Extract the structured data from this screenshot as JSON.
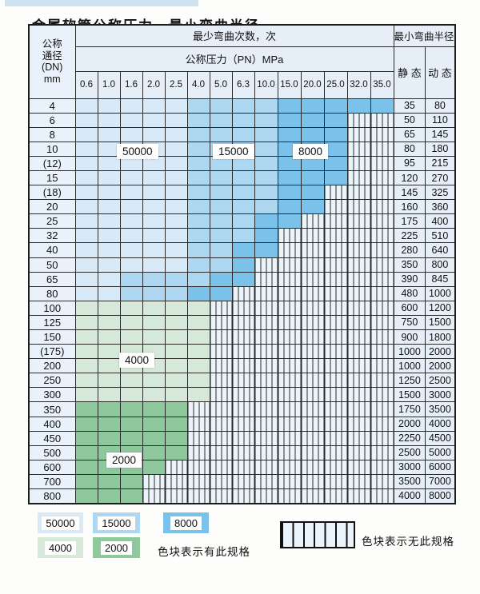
{
  "title": "金属软管公称压力、最小弯曲半径",
  "table": {
    "header": {
      "dn_label_lines": [
        "公称",
        "通径",
        "(DN)",
        "mm"
      ],
      "bend_cycles_label": "最少弯曲次数，次",
      "pressure_label": "公称压力（PN）MPa",
      "pressure_columns": [
        "0.6",
        "1.0",
        "1.6",
        "2.0",
        "2.5",
        "4.0",
        "5.0",
        "6.3",
        "10.0",
        "15.0",
        "20.0",
        "25.0",
        "32.0",
        "35.0"
      ],
      "radius_label": "最小弯曲半径",
      "static_label": "静 态",
      "dynamic_label": "动 态"
    },
    "rows": [
      {
        "dn": "4",
        "cells": [
          "L",
          "L",
          "L",
          "L",
          "L",
          "M",
          "M",
          "M",
          "M",
          "D",
          "D",
          "D",
          "D",
          "D"
        ],
        "static": "35",
        "dynamic": "80"
      },
      {
        "dn": "6",
        "cells": [
          "L",
          "L",
          "L",
          "L",
          "L",
          "M",
          "M",
          "M",
          "M",
          "D",
          "D",
          "D",
          "X",
          "X"
        ],
        "static": "50",
        "dynamic": "110"
      },
      {
        "dn": "8",
        "cells": [
          "L",
          "L",
          "L",
          "L",
          "L",
          "M",
          "M",
          "M",
          "M",
          "D",
          "D",
          "D",
          "X",
          "X"
        ],
        "static": "65",
        "dynamic": "145"
      },
      {
        "dn": "10",
        "cells": [
          "L",
          "L",
          "L",
          "L",
          "L",
          "M",
          "M",
          "M",
          "M",
          "D",
          "D",
          "D",
          "X",
          "X"
        ],
        "static": "80",
        "dynamic": "180"
      },
      {
        "dn": "(12)",
        "cells": [
          "L",
          "L",
          "L",
          "L",
          "L",
          "M",
          "M",
          "M",
          "M",
          "D",
          "D",
          "D",
          "X",
          "X"
        ],
        "static": "95",
        "dynamic": "215"
      },
      {
        "dn": "15",
        "cells": [
          "L",
          "L",
          "L",
          "L",
          "L",
          "M",
          "M",
          "M",
          "M",
          "D",
          "D",
          "D",
          "X",
          "X"
        ],
        "static": "120",
        "dynamic": "270"
      },
      {
        "dn": "(18)",
        "cells": [
          "L",
          "L",
          "L",
          "L",
          "L",
          "M",
          "M",
          "M",
          "M",
          "D",
          "D",
          "X",
          "X",
          "X"
        ],
        "static": "145",
        "dynamic": "325"
      },
      {
        "dn": "20",
        "cells": [
          "L",
          "L",
          "L",
          "L",
          "L",
          "M",
          "M",
          "M",
          "M",
          "D",
          "D",
          "X",
          "X",
          "X"
        ],
        "static": "160",
        "dynamic": "360"
      },
      {
        "dn": "25",
        "cells": [
          "L",
          "L",
          "L",
          "L",
          "L",
          "M",
          "M",
          "M",
          "D",
          "D",
          "X",
          "X",
          "X",
          "X"
        ],
        "static": "175",
        "dynamic": "400"
      },
      {
        "dn": "32",
        "cells": [
          "L",
          "L",
          "L",
          "L",
          "L",
          "M",
          "M",
          "M",
          "D",
          "X",
          "X",
          "X",
          "X",
          "X"
        ],
        "static": "225",
        "dynamic": "510"
      },
      {
        "dn": "40",
        "cells": [
          "L",
          "L",
          "L",
          "L",
          "L",
          "M",
          "M",
          "D",
          "D",
          "X",
          "X",
          "X",
          "X",
          "X"
        ],
        "static": "280",
        "dynamic": "640"
      },
      {
        "dn": "50",
        "cells": [
          "L",
          "L",
          "L",
          "L",
          "L",
          "M",
          "M",
          "D",
          "X",
          "X",
          "X",
          "X",
          "X",
          "X"
        ],
        "static": "350",
        "dynamic": "800"
      },
      {
        "dn": "65",
        "cells": [
          "L",
          "L",
          "M",
          "M",
          "M",
          "M",
          "D",
          "D",
          "X",
          "X",
          "X",
          "X",
          "X",
          "X"
        ],
        "static": "390",
        "dynamic": "845"
      },
      {
        "dn": "80",
        "cells": [
          "L",
          "L",
          "M",
          "M",
          "M",
          "D",
          "D",
          "X",
          "X",
          "X",
          "X",
          "X",
          "X",
          "X"
        ],
        "static": "480",
        "dynamic": "1000"
      },
      {
        "dn": "100",
        "cells": [
          "G",
          "G",
          "G",
          "G",
          "G",
          "G",
          "X",
          "X",
          "X",
          "X",
          "X",
          "X",
          "X",
          "X"
        ],
        "static": "600",
        "dynamic": "1200"
      },
      {
        "dn": "125",
        "cells": [
          "G",
          "G",
          "G",
          "G",
          "G",
          "G",
          "X",
          "X",
          "X",
          "X",
          "X",
          "X",
          "X",
          "X"
        ],
        "static": "750",
        "dynamic": "1500"
      },
      {
        "dn": "150",
        "cells": [
          "G",
          "G",
          "G",
          "G",
          "G",
          "G",
          "X",
          "X",
          "X",
          "X",
          "X",
          "X",
          "X",
          "X"
        ],
        "static": "900",
        "dynamic": "1800"
      },
      {
        "dn": "(175)",
        "cells": [
          "G",
          "G",
          "G",
          "G",
          "G",
          "G",
          "X",
          "X",
          "X",
          "X",
          "X",
          "X",
          "X",
          "X"
        ],
        "static": "1000",
        "dynamic": "2000"
      },
      {
        "dn": "200",
        "cells": [
          "G",
          "G",
          "G",
          "G",
          "G",
          "G",
          "X",
          "X",
          "X",
          "X",
          "X",
          "X",
          "X",
          "X"
        ],
        "static": "1000",
        "dynamic": "2000"
      },
      {
        "dn": "250",
        "cells": [
          "G",
          "G",
          "G",
          "G",
          "G",
          "G",
          "X",
          "X",
          "X",
          "X",
          "X",
          "X",
          "X",
          "X"
        ],
        "static": "1250",
        "dynamic": "2500"
      },
      {
        "dn": "300",
        "cells": [
          "G",
          "G",
          "G",
          "G",
          "G",
          "G",
          "X",
          "X",
          "X",
          "X",
          "X",
          "X",
          "X",
          "X"
        ],
        "static": "1500",
        "dynamic": "3000"
      },
      {
        "dn": "350",
        "cells": [
          "E",
          "E",
          "E",
          "E",
          "E",
          "X",
          "X",
          "X",
          "X",
          "X",
          "X",
          "X",
          "X",
          "X"
        ],
        "static": "1750",
        "dynamic": "3500"
      },
      {
        "dn": "400",
        "cells": [
          "E",
          "E",
          "E",
          "E",
          "E",
          "X",
          "X",
          "X",
          "X",
          "X",
          "X",
          "X",
          "X",
          "X"
        ],
        "static": "2000",
        "dynamic": "4000"
      },
      {
        "dn": "450",
        "cells": [
          "E",
          "E",
          "E",
          "E",
          "E",
          "X",
          "X",
          "X",
          "X",
          "X",
          "X",
          "X",
          "X",
          "X"
        ],
        "static": "2250",
        "dynamic": "4500"
      },
      {
        "dn": "500",
        "cells": [
          "E",
          "E",
          "E",
          "E",
          "E",
          "X",
          "X",
          "X",
          "X",
          "X",
          "X",
          "X",
          "X",
          "X"
        ],
        "static": "2500",
        "dynamic": "5000"
      },
      {
        "dn": "600",
        "cells": [
          "E",
          "E",
          "E",
          "E",
          "X",
          "X",
          "X",
          "X",
          "X",
          "X",
          "X",
          "X",
          "X",
          "X"
        ],
        "static": "3000",
        "dynamic": "6000"
      },
      {
        "dn": "700",
        "cells": [
          "E",
          "E",
          "E",
          "X",
          "X",
          "X",
          "X",
          "X",
          "X",
          "X",
          "X",
          "X",
          "X",
          "X"
        ],
        "static": "3500",
        "dynamic": "7000"
      },
      {
        "dn": "800",
        "cells": [
          "E",
          "E",
          "E",
          "X",
          "X",
          "X",
          "X",
          "X",
          "X",
          "X",
          "X",
          "X",
          "X",
          "X"
        ],
        "static": "4000",
        "dynamic": "8000"
      }
    ]
  },
  "overlays": {
    "l50000": {
      "text": "50000"
    },
    "l15000": {
      "text": "15000"
    },
    "l8000": {
      "text": "8000"
    },
    "l4000": {
      "text": "4000"
    },
    "l2000": {
      "text": "2000"
    }
  },
  "legend": {
    "swatches": [
      {
        "label": "50000",
        "color_key": "L"
      },
      {
        "label": "15000",
        "color_key": "M"
      },
      {
        "label": "8000",
        "color_key": "D"
      },
      {
        "label": "4000",
        "color_key": "G"
      },
      {
        "label": "2000",
        "color_key": "E"
      }
    ],
    "has_spec_text": "色块表示有此规格",
    "no_spec_text": "色块表示无此规格"
  },
  "colors": {
    "L": "#d8e9f7",
    "M": "#aed8f2",
    "D": "#7bc2ea",
    "G": "#d6e9d8",
    "E": "#8fc89d",
    "hatch_bg": "#ecf4fb",
    "grid": "#2a2a2a"
  }
}
